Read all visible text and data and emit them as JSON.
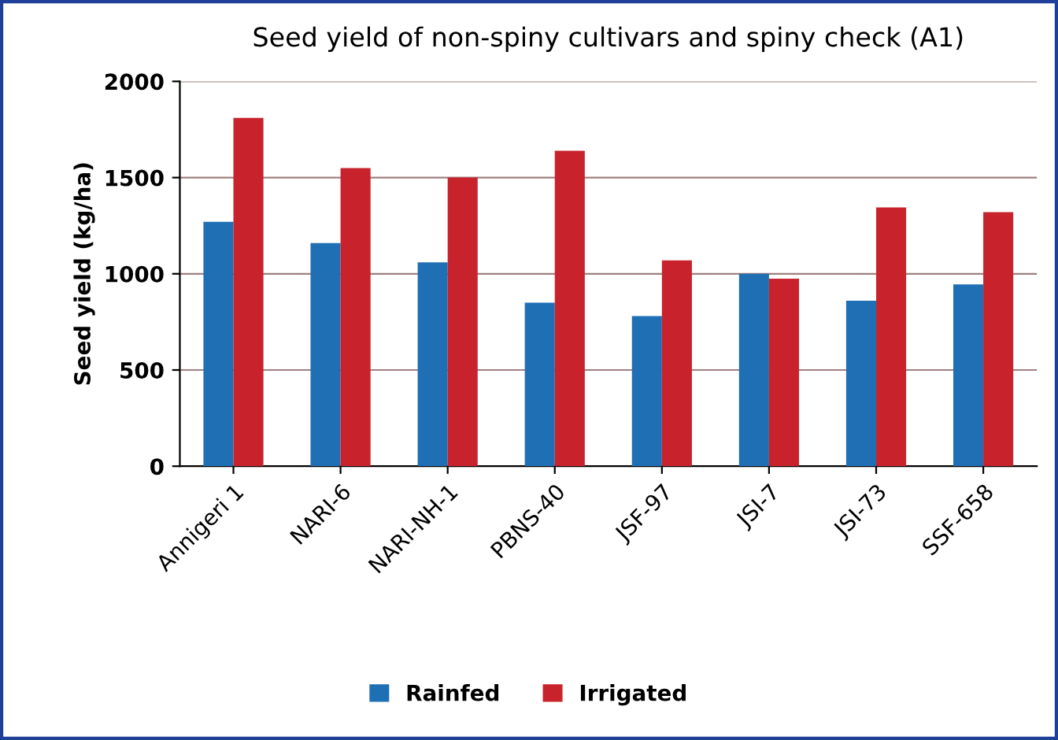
{
  "chart_data": {
    "type": "bar",
    "title": "Seed yield of non-spiny cultivars and spiny check (A1)",
    "ylabel": "Seed yield (kg/ha)",
    "categories": [
      "Annigeri 1",
      "NARI-6",
      "NARI-NH-1",
      "PBNS-40",
      "JSF-97",
      "JSI-7",
      "JSI-73",
      "SSF-658"
    ],
    "series": [
      {
        "name": "Rainfed",
        "color": "#1f6fb5",
        "values": [
          1270,
          1160,
          1060,
          850,
          780,
          1000,
          860,
          945
        ]
      },
      {
        "name": "Irrigated",
        "color": "#c8232c",
        "values": [
          1810,
          1550,
          1500,
          1640,
          1070,
          975,
          1345,
          1320
        ]
      }
    ],
    "ylim": [
      0,
      2000
    ],
    "yticks": [
      0,
      500,
      1000,
      1500,
      2000
    ],
    "grid": "y",
    "legend": "bottom"
  }
}
